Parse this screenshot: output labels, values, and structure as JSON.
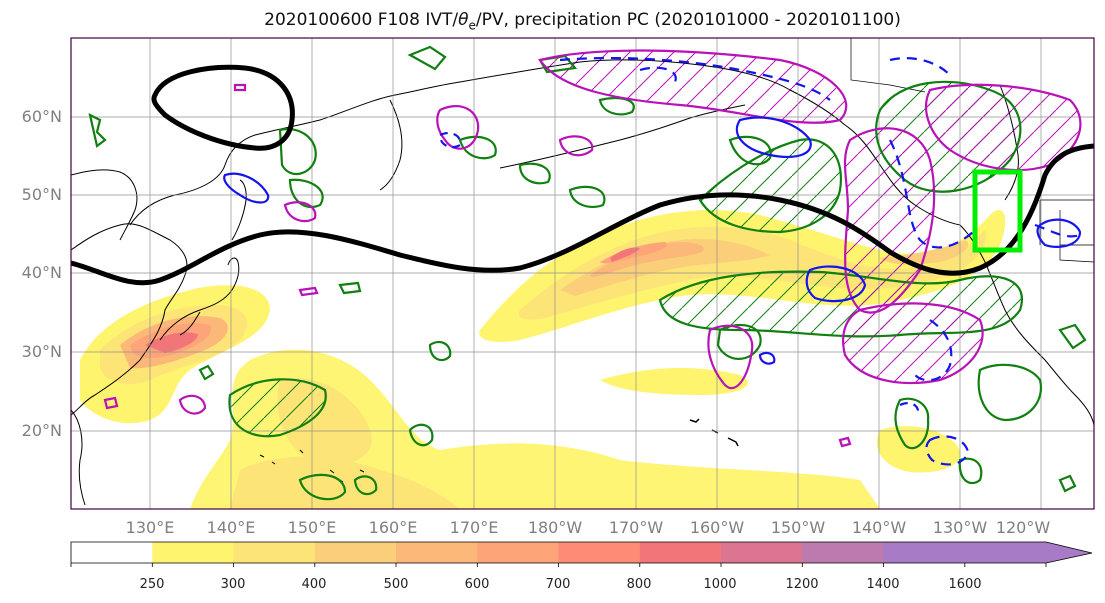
{
  "title_prefix": "2020100600 F108 IVT/",
  "title_theta": "θ",
  "title_sub": "e",
  "title_suffix": "/PV, precipitation PC (2020101000 - 2020101100)",
  "lat_labels": [
    "60°N",
    "50°N",
    "40°N",
    "30°N",
    "20°N"
  ],
  "lon_labels": [
    "130°E",
    "140°E",
    "150°E",
    "160°E",
    "170°E",
    "180°W",
    "170°W",
    "160°W",
    "150°W",
    "140°W",
    "130°W",
    "120°W"
  ],
  "colorbar": {
    "ticks": [
      "250",
      "300",
      "400",
      "500",
      "600",
      "700",
      "800",
      "1000",
      "1200",
      "1400",
      "1600"
    ],
    "colors": [
      "#ffffff",
      "#fff46e",
      "#fde477",
      "#fbcf7a",
      "#fcb878",
      "#fda478",
      "#fd8c77",
      "#f27679",
      "#dc7592",
      "#bd7aae",
      "#a77bc6"
    ]
  },
  "colors": {
    "jet": "#000000",
    "green_contours": "#118011",
    "magenta_contours": "#b812b8",
    "blue_contours": "#1414ee",
    "highlight_box": "#00ee00"
  }
}
